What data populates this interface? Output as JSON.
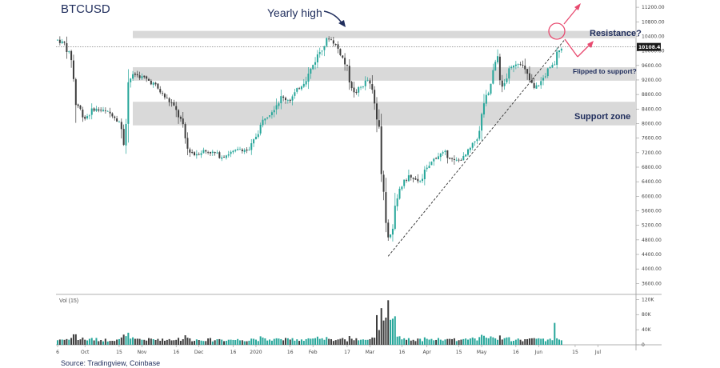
{
  "chart_data": {
    "type": "candlestick",
    "title": "BTCUSD",
    "source": "Source: Tradingview, Coinbase",
    "price_axis": {
      "ylim": [
        3300,
        11400
      ],
      "ticks": [
        "11200.00",
        "10800.00",
        "10400.00",
        "10000.00",
        "9600.00",
        "9200.00",
        "8800.00",
        "8400.00",
        "8000.00",
        "7600.00",
        "7200.00",
        "6800.00",
        "6400.00",
        "6000.00",
        "5600.00",
        "5200.00",
        "4800.00",
        "4400.00",
        "4000.00",
        "3600.00"
      ],
      "tick_values": [
        11200,
        10800,
        10400,
        10000,
        9600,
        9200,
        8800,
        8400,
        8000,
        7600,
        7200,
        6800,
        6400,
        6000,
        5600,
        5200,
        4800,
        4400,
        4000,
        3600
      ],
      "last_price_label": "10108.45",
      "last_price": 10108.45
    },
    "volume_axis": {
      "label": "Vol (15)",
      "ylim": [
        0,
        125000
      ],
      "ticks": [
        "120K",
        "80K",
        "40K",
        "0"
      ],
      "tick_values": [
        120000,
        80000,
        40000,
        0
      ]
    },
    "x_axis": {
      "ticks": [
        "6",
        "Oct",
        "15",
        "Nov",
        "16",
        "Dec",
        "16",
        "2020",
        "16",
        "Feb",
        "17",
        "Mar",
        "16",
        "Apr",
        "15",
        "May",
        "16",
        "Jun",
        "15",
        "Jul"
      ],
      "bar_index": [
        0,
        12,
        27,
        37,
        52,
        62,
        77,
        87,
        102,
        112,
        127,
        137,
        151,
        162,
        176,
        186,
        201,
        211,
        227,
        237
      ]
    },
    "zones": [
      {
        "name": "resistance",
        "low": 10350,
        "high": 10550
      },
      {
        "name": "flipped-to-support",
        "low": 9180,
        "high": 9550
      },
      {
        "name": "support",
        "low": 7950,
        "high": 8600
      }
    ],
    "annotations": {
      "yearly_high": "Yearly high",
      "resistance": "Resistance?",
      "flipped": "Flipped to support?",
      "support": "Support zone"
    },
    "trendline": {
      "from": {
        "bar": 145,
        "price": 4350
      },
      "to": {
        "bar": 221,
        "price": 10000
      }
    },
    "anchors": [
      {
        "bar": 0,
        "price": 10300
      },
      {
        "bar": 3,
        "price": 10200
      },
      {
        "bar": 6,
        "price": 9800
      },
      {
        "bar": 8,
        "price": 8600
      },
      {
        "bar": 12,
        "price": 8150
      },
      {
        "bar": 16,
        "price": 8400
      },
      {
        "bar": 20,
        "price": 8350
      },
      {
        "bar": 24,
        "price": 8250
      },
      {
        "bar": 27,
        "price": 8050
      },
      {
        "bar": 29,
        "price": 7500
      },
      {
        "bar": 31,
        "price": 9200
      },
      {
        "bar": 34,
        "price": 9350
      },
      {
        "bar": 38,
        "price": 9250
      },
      {
        "bar": 42,
        "price": 9100
      },
      {
        "bar": 46,
        "price": 8800
      },
      {
        "bar": 50,
        "price": 8550
      },
      {
        "bar": 54,
        "price": 8100
      },
      {
        "bar": 57,
        "price": 7300
      },
      {
        "bar": 60,
        "price": 7150
      },
      {
        "bar": 64,
        "price": 7250
      },
      {
        "bar": 68,
        "price": 7200
      },
      {
        "bar": 72,
        "price": 7100
      },
      {
        "bar": 76,
        "price": 7200
      },
      {
        "bar": 80,
        "price": 7300
      },
      {
        "bar": 84,
        "price": 7250
      },
      {
        "bar": 88,
        "price": 7800
      },
      {
        "bar": 91,
        "price": 8200
      },
      {
        "bar": 94,
        "price": 8400
      },
      {
        "bar": 98,
        "price": 8700
      },
      {
        "bar": 102,
        "price": 8650
      },
      {
        "bar": 106,
        "price": 9000
      },
      {
        "bar": 110,
        "price": 9350
      },
      {
        "bar": 113,
        "price": 9750
      },
      {
        "bar": 116,
        "price": 10100
      },
      {
        "bar": 119,
        "price": 10350
      },
      {
        "bar": 121,
        "price": 10250
      },
      {
        "bar": 124,
        "price": 9950
      },
      {
        "bar": 127,
        "price": 9500
      },
      {
        "bar": 130,
        "price": 8800
      },
      {
        "bar": 133,
        "price": 9000
      },
      {
        "bar": 136,
        "price": 9200
      },
      {
        "bar": 138,
        "price": 8850
      },
      {
        "bar": 141,
        "price": 7800
      },
      {
        "bar": 143,
        "price": 6200
      },
      {
        "bar": 145,
        "price": 4850
      },
      {
        "bar": 147,
        "price": 5200
      },
      {
        "bar": 150,
        "price": 6200
      },
      {
        "bar": 154,
        "price": 6550
      },
      {
        "bar": 158,
        "price": 6350
      },
      {
        "bar": 162,
        "price": 6750
      },
      {
        "bar": 166,
        "price": 7100
      },
      {
        "bar": 170,
        "price": 7200
      },
      {
        "bar": 174,
        "price": 6950
      },
      {
        "bar": 178,
        "price": 7050
      },
      {
        "bar": 182,
        "price": 7400
      },
      {
        "bar": 185,
        "price": 7750
      },
      {
        "bar": 187,
        "price": 8600
      },
      {
        "bar": 189,
        "price": 8800
      },
      {
        "bar": 191,
        "price": 9400
      },
      {
        "bar": 193,
        "price": 9850
      },
      {
        "bar": 195,
        "price": 8900
      },
      {
        "bar": 197,
        "price": 9300
      },
      {
        "bar": 200,
        "price": 9650
      },
      {
        "bar": 203,
        "price": 9700
      },
      {
        "bar": 206,
        "price": 9300
      },
      {
        "bar": 209,
        "price": 8950
      },
      {
        "bar": 212,
        "price": 9150
      },
      {
        "bar": 215,
        "price": 9450
      },
      {
        "bar": 218,
        "price": 9650
      },
      {
        "bar": 220,
        "price": 10100
      },
      {
        "bar": 221,
        "price": 10108
      }
    ],
    "colors": {
      "up": "#26a69a",
      "down": "#3d3d3d",
      "zone": "#d9d9d9",
      "annotation": "#1f2d5c",
      "arrow": "#e84a6f",
      "grid": "#e6e6e6"
    }
  }
}
